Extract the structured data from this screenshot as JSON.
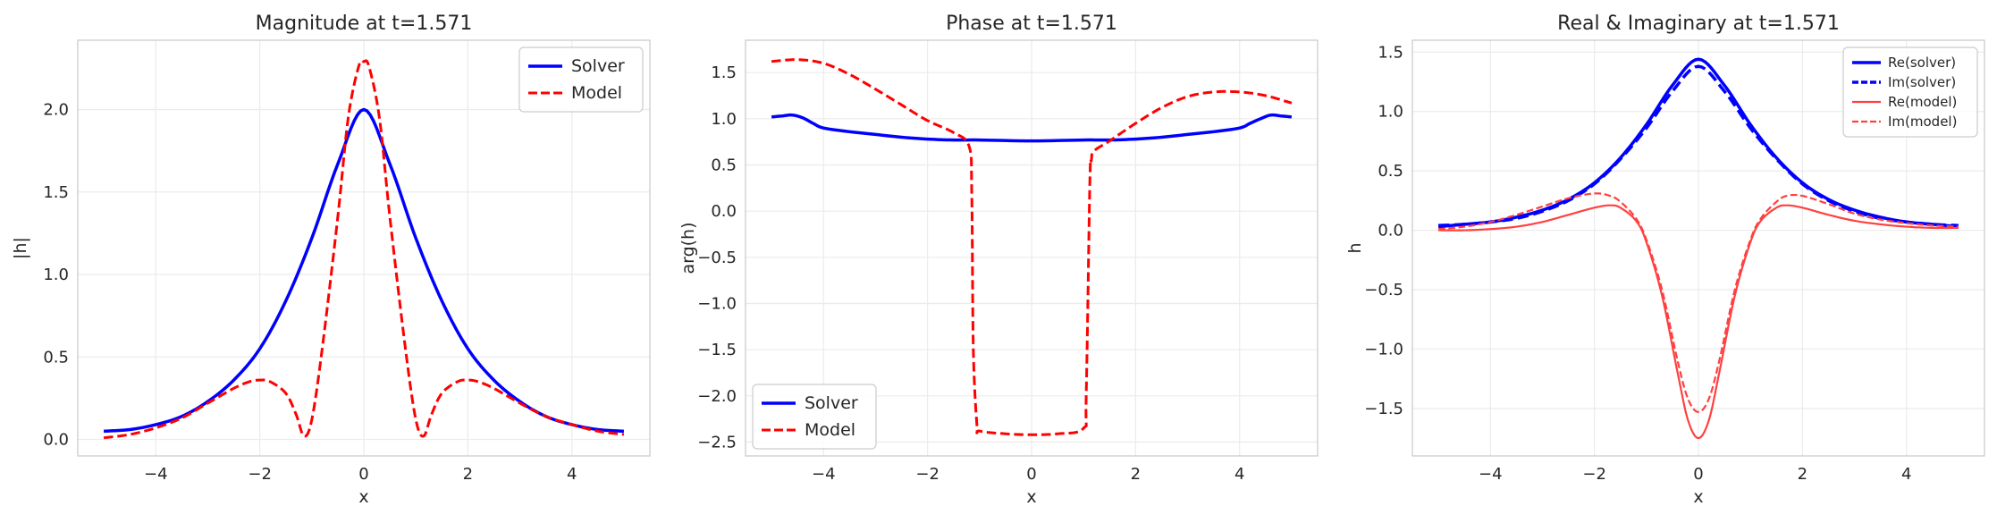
{
  "chart_data": [
    {
      "type": "line",
      "title": "Magnitude at t=1.571",
      "xlabel": "x",
      "ylabel": "|h|",
      "xlim": [
        -5.5,
        5.5
      ],
      "ylim": [
        -0.1,
        2.42
      ],
      "xticks": [
        -4,
        -2,
        0,
        2,
        4
      ],
      "xtick_labels": [
        "−4",
        "−2",
        "0",
        "2",
        "4"
      ],
      "yticks": [
        0.0,
        0.5,
        1.0,
        1.5,
        2.0
      ],
      "ytick_labels": [
        "0.0",
        "0.5",
        "1.0",
        "1.5",
        "2.0"
      ],
      "grid": true,
      "legend": "top-right",
      "legend_size": "normal",
      "series": [
        {
          "name": "Solver",
          "color": "#0000ff",
          "dash": "solid",
          "width": 3.5,
          "x": [
            -5,
            -4.5,
            -4,
            -3.5,
            -3,
            -2.5,
            -2,
            -1.5,
            -1,
            -0.5,
            0,
            0.5,
            1,
            1.5,
            2,
            2.5,
            3,
            3.5,
            4,
            4.5,
            5
          ],
          "y": [
            0.05,
            0.06,
            0.09,
            0.14,
            0.23,
            0.36,
            0.55,
            0.84,
            1.22,
            1.67,
            2.0,
            1.67,
            1.22,
            0.84,
            0.55,
            0.36,
            0.23,
            0.14,
            0.09,
            0.06,
            0.05
          ]
        },
        {
          "name": "Model",
          "color": "#ff0000",
          "dash": "dashed",
          "width": 3,
          "x": [
            -5,
            -4.5,
            -4,
            -3.5,
            -3,
            -2.5,
            -2.2,
            -2,
            -1.8,
            -1.5,
            -1.3,
            -1.15,
            -1,
            -0.8,
            -0.5,
            -0.3,
            -0.1,
            0,
            0.1,
            0.3,
            0.5,
            0.8,
            1,
            1.15,
            1.3,
            1.5,
            1.8,
            2,
            2.2,
            2.5,
            3,
            3.5,
            4,
            4.5,
            5
          ],
          "y": [
            0.01,
            0.03,
            0.07,
            0.13,
            0.22,
            0.31,
            0.35,
            0.36,
            0.35,
            0.28,
            0.15,
            0.02,
            0.12,
            0.55,
            1.35,
            1.95,
            2.26,
            2.29,
            2.26,
            1.95,
            1.35,
            0.55,
            0.12,
            0.02,
            0.15,
            0.28,
            0.35,
            0.36,
            0.35,
            0.31,
            0.22,
            0.14,
            0.09,
            0.05,
            0.03
          ]
        }
      ]
    },
    {
      "type": "line",
      "title": "Phase at t=1.571",
      "xlabel": "x",
      "ylabel": "arg(h)",
      "xlim": [
        -5.5,
        5.5
      ],
      "ylim": [
        -2.65,
        1.85
      ],
      "xticks": [
        -4,
        -2,
        0,
        2,
        4
      ],
      "xtick_labels": [
        "−4",
        "−2",
        "0",
        "2",
        "4"
      ],
      "yticks": [
        -2.5,
        -2.0,
        -1.5,
        -1.0,
        -0.5,
        0.0,
        0.5,
        1.0,
        1.5
      ],
      "ytick_labels": [
        "−2.5",
        "−2.0",
        "−1.5",
        "−1.0",
        "−0.5",
        "0.0",
        "0.5",
        "1.0",
        "1.5"
      ],
      "grid": true,
      "legend": "bottom-left",
      "legend_size": "normal",
      "series": [
        {
          "name": "Solver",
          "color": "#0000ff",
          "dash": "solid",
          "width": 3.5,
          "x": [
            -5,
            -4.8,
            -4.6,
            -4.4,
            -4.2,
            -4,
            -3.5,
            -3,
            -2.5,
            -2,
            -1.5,
            -1,
            0,
            1,
            1.5,
            2,
            2.5,
            3,
            3.5,
            4,
            4.2,
            4.4,
            4.6,
            4.8,
            5
          ],
          "y": [
            1.02,
            1.03,
            1.04,
            1.01,
            0.95,
            0.9,
            0.86,
            0.83,
            0.8,
            0.78,
            0.77,
            0.77,
            0.76,
            0.77,
            0.77,
            0.78,
            0.8,
            0.83,
            0.86,
            0.9,
            0.95,
            1.0,
            1.04,
            1.03,
            1.02
          ]
        },
        {
          "name": "Model",
          "color": "#ff0000",
          "dash": "dashed",
          "width": 3,
          "x": [
            -5,
            -4.5,
            -4,
            -3.5,
            -3,
            -2.5,
            -2,
            -1.5,
            -1.2,
            -1.15,
            -1.12,
            -1.05,
            -1,
            -0.5,
            0,
            0.5,
            1,
            1.05,
            1.12,
            1.15,
            1.2,
            1.5,
            2,
            2.5,
            3,
            3.5,
            4,
            4.5,
            5
          ],
          "y": [
            1.62,
            1.64,
            1.6,
            1.48,
            1.32,
            1.15,
            0.98,
            0.85,
            0.7,
            0.2,
            -1.5,
            -2.32,
            -2.38,
            -2.41,
            -2.42,
            -2.41,
            -2.35,
            -2.0,
            0.3,
            0.55,
            0.65,
            0.76,
            0.95,
            1.12,
            1.24,
            1.29,
            1.29,
            1.25,
            1.17
          ]
        }
      ]
    },
    {
      "type": "line",
      "title": "Real & Imaginary at t=1.571",
      "xlabel": "x",
      "ylabel": "h",
      "xlim": [
        -5.5,
        5.5
      ],
      "ylim": [
        -1.9,
        1.6
      ],
      "xticks": [
        -4,
        -2,
        0,
        2,
        4
      ],
      "xtick_labels": [
        "−4",
        "−2",
        "0",
        "2",
        "4"
      ],
      "yticks": [
        -1.5,
        -1.0,
        -0.5,
        0.0,
        0.5,
        1.0,
        1.5
      ],
      "ytick_labels": [
        "−1.5",
        "−1.0",
        "−0.5",
        "0.0",
        "0.5",
        "1.0",
        "1.5"
      ],
      "grid": true,
      "legend": "top-right",
      "legend_size": "small",
      "series": [
        {
          "name": "Re(solver)",
          "color": "#0000ff",
          "dash": "solid",
          "width": 3.5,
          "x": [
            -5,
            -4.5,
            -4,
            -3.5,
            -3,
            -2.5,
            -2,
            -1.5,
            -1,
            -0.5,
            0,
            0.5,
            1,
            1.5,
            2,
            2.5,
            3,
            3.5,
            4,
            4.5,
            5
          ],
          "y": [
            0.03,
            0.05,
            0.07,
            0.11,
            0.17,
            0.26,
            0.4,
            0.61,
            0.89,
            1.22,
            1.44,
            1.22,
            0.89,
            0.61,
            0.4,
            0.26,
            0.17,
            0.11,
            0.07,
            0.05,
            0.03
          ]
        },
        {
          "name": "Im(solver)",
          "color": "#0000ff",
          "dash": "dashed",
          "width": 3.5,
          "x": [
            -5,
            -4.5,
            -4,
            -3.5,
            -3,
            -2.5,
            -2,
            -1.5,
            -1,
            -0.5,
            0,
            0.5,
            1,
            1.5,
            2,
            2.5,
            3,
            3.5,
            4,
            4.5,
            5
          ],
          "y": [
            0.04,
            0.05,
            0.07,
            0.1,
            0.16,
            0.25,
            0.39,
            0.6,
            0.86,
            1.17,
            1.38,
            1.17,
            0.86,
            0.6,
            0.39,
            0.25,
            0.16,
            0.1,
            0.07,
            0.05,
            0.04
          ]
        },
        {
          "name": "Re(model)",
          "color": "#ff4040",
          "dash": "solid",
          "width": 2.2,
          "x": [
            -5,
            -4.5,
            -4,
            -3.5,
            -3,
            -2.5,
            -2,
            -1.7,
            -1.5,
            -1.2,
            -1,
            -0.7,
            -0.4,
            -0.2,
            0,
            0.2,
            0.4,
            0.7,
            1,
            1.2,
            1.5,
            1.7,
            2,
            2.5,
            3,
            3.5,
            4,
            4.5,
            5
          ],
          "y": [
            0.0,
            0.0,
            0.01,
            0.03,
            0.07,
            0.13,
            0.19,
            0.21,
            0.19,
            0.08,
            -0.1,
            -0.55,
            -1.2,
            -1.6,
            -1.75,
            -1.6,
            -1.2,
            -0.55,
            -0.1,
            0.08,
            0.19,
            0.21,
            0.19,
            0.13,
            0.08,
            0.05,
            0.03,
            0.02,
            0.02
          ]
        },
        {
          "name": "Im(model)",
          "color": "#ff4040",
          "dash": "dashed",
          "width": 2.2,
          "x": [
            -5,
            -4.5,
            -4,
            -3.5,
            -3,
            -2.5,
            -2,
            -1.7,
            -1.5,
            -1.2,
            -1,
            -0.7,
            -0.4,
            -0.2,
            0,
            0.2,
            0.4,
            0.7,
            1,
            1.2,
            1.5,
            1.7,
            2,
            2.5,
            3,
            3.5,
            4,
            4.5,
            5
          ],
          "y": [
            0.01,
            0.03,
            0.07,
            0.13,
            0.2,
            0.27,
            0.31,
            0.29,
            0.24,
            0.1,
            -0.08,
            -0.5,
            -1.1,
            -1.42,
            -1.53,
            -1.42,
            -1.1,
            -0.5,
            -0.08,
            0.1,
            0.24,
            0.29,
            0.29,
            0.22,
            0.14,
            0.09,
            0.06,
            0.04,
            0.03
          ]
        }
      ]
    }
  ]
}
